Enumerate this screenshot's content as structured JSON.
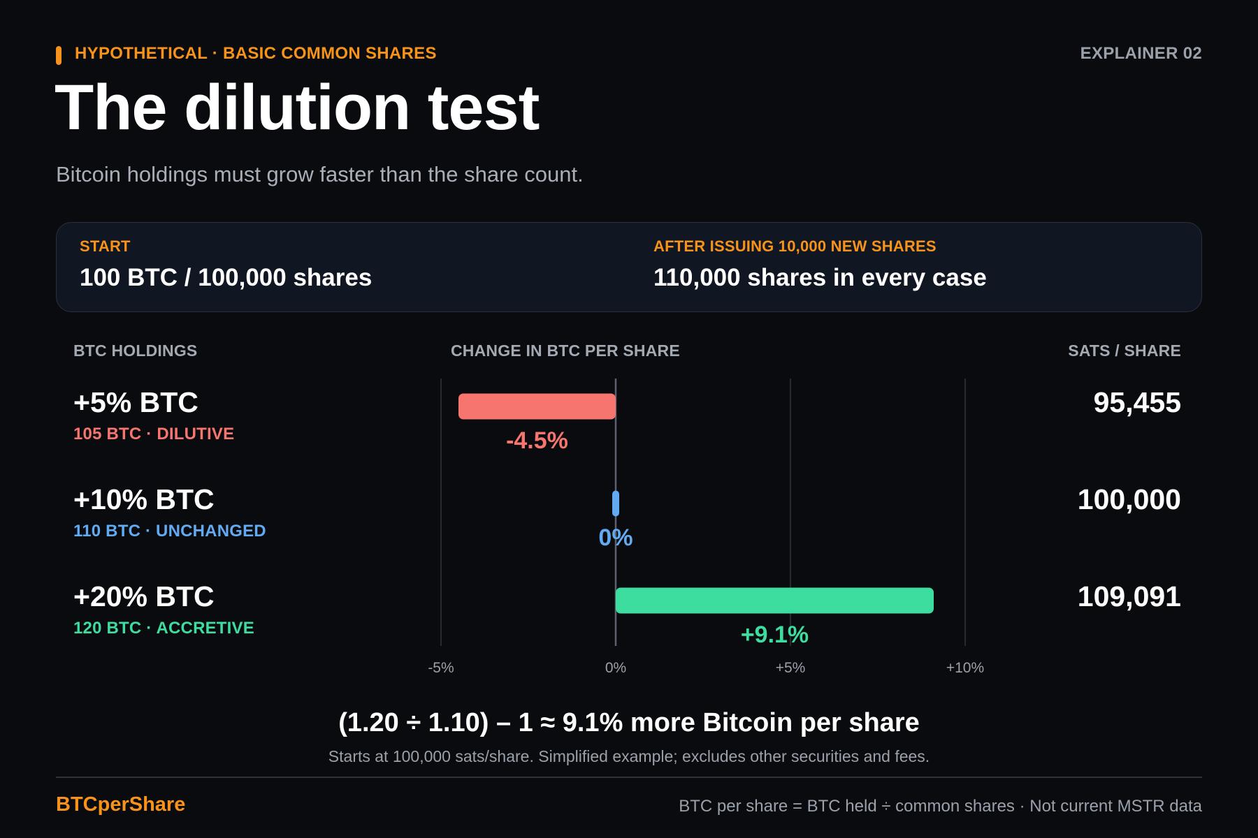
{
  "header": {
    "kicker": "HYPOTHETICAL · BASIC COMMON SHARES",
    "explainer": "EXPLAINER 02",
    "title": "The dilution test",
    "subtitle": "Bitcoin holdings must grow faster than the share count."
  },
  "summary": {
    "start_label": "START",
    "start_value": "100 BTC / 100,000 shares",
    "after_label": "AFTER ISSUING 10,000 NEW SHARES",
    "after_value": "110,000 shares in every case"
  },
  "columns": {
    "holdings": "BTC HOLDINGS",
    "change": "CHANGE IN BTC PER SHARE",
    "sats": "SATS / SHARE"
  },
  "rows": [
    {
      "title": "+5% BTC",
      "sub": "105 BTC · DILUTIVE",
      "sats": "95,455"
    },
    {
      "title": "+10% BTC",
      "sub": "110 BTC · UNCHANGED",
      "sats": "100,000"
    },
    {
      "title": "+20% BTC",
      "sub": "120 BTC · ACCRETIVE",
      "sats": "109,091"
    }
  ],
  "chart_data": {
    "type": "bar",
    "orientation": "horizontal",
    "categories": [
      "+5% BTC",
      "+10% BTC",
      "+20% BTC"
    ],
    "values": [
      -4.5,
      0,
      9.1
    ],
    "value_labels": [
      "-4.5%",
      "0%",
      "+9.1%"
    ],
    "colors": [
      "#f7756f",
      "#62aaf2",
      "#3ddc9f"
    ],
    "xlim": [
      -5,
      10
    ],
    "xticks": [
      -5,
      0,
      5,
      10
    ],
    "xtick_labels": [
      "-5%",
      "0%",
      "+5%",
      "+10%"
    ],
    "grid": true
  },
  "formula": "(1.20 ÷ 1.10) – 1 ≈ 9.1% more Bitcoin per share",
  "footnote": "Starts at 100,000 sats/share. Simplified example; excludes other securities and fees.",
  "footer": {
    "brand": "BTCperShare",
    "note": "BTC per share = BTC held ÷ common shares · Not current MSTR data"
  },
  "colors": {
    "accent": "#f7931a",
    "negative": "#f7756f",
    "neutral": "#62aaf2",
    "positive": "#3ddc9f"
  }
}
